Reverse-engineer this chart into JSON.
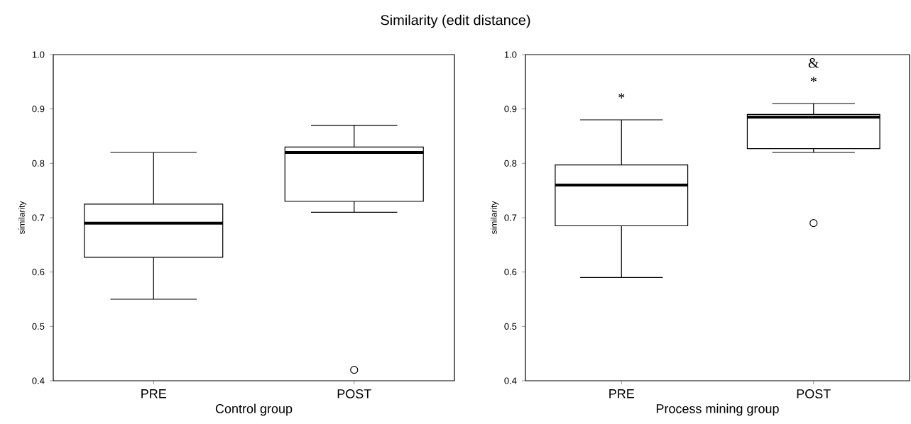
{
  "chart_data": [
    {
      "type": "box",
      "title": "Similarity (edit distance)",
      "xlabel": "Control group",
      "ylabel": "similarity",
      "categories": [
        "PRE",
        "POST"
      ],
      "boxes": [
        {
          "low": 0.55,
          "q1": 0.627,
          "median": 0.69,
          "q3": 0.725,
          "high": 0.82
        },
        {
          "low": 0.71,
          "q1": 0.73,
          "median": 0.82,
          "q3": 0.83,
          "high": 0.87,
          "outliers": [
            0.42
          ]
        }
      ],
      "ylim": [
        0.4,
        1.0
      ],
      "yticks": [
        0.4,
        0.5,
        0.6,
        0.7,
        0.8,
        0.9,
        {
          "value": 1.0,
          "label": "1.0"
        }
      ]
    },
    {
      "type": "box",
      "xlabel": "Process mining group",
      "ylabel": "similarity",
      "categories": [
        "PRE",
        "POST"
      ],
      "boxes": [
        {
          "low": 0.59,
          "q1": 0.685,
          "median": 0.76,
          "q3": 0.797,
          "high": 0.88
        },
        {
          "low": 0.82,
          "q1": 0.827,
          "median": 0.885,
          "q3": 0.89,
          "high": 0.91,
          "outliers": [
            0.69
          ]
        }
      ],
      "ylim": [
        0.4,
        1.0
      ],
      "yticks": [
        0.4,
        0.5,
        0.6,
        0.7,
        0.8,
        0.9,
        {
          "value": 1.0,
          "label": "1.0"
        }
      ],
      "annotations": [
        "*",
        "*",
        "&"
      ]
    }
  ]
}
